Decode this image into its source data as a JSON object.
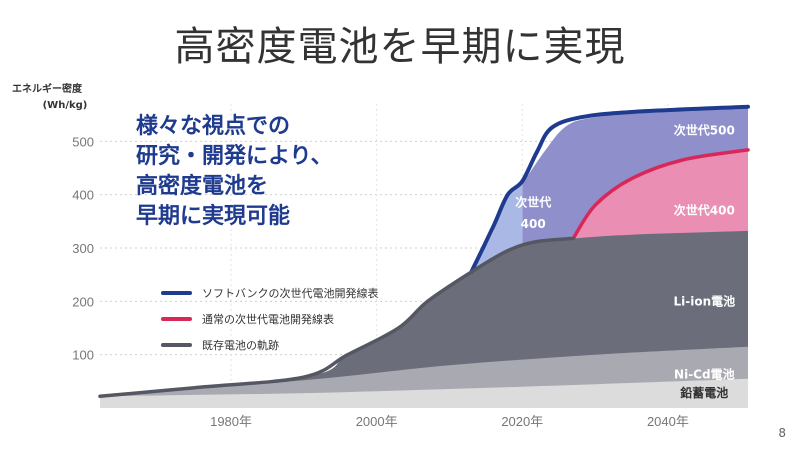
{
  "slide": {
    "title": "高密度電池を早期に実現",
    "page_number": "8"
  },
  "chart_data": {
    "type": "area",
    "ylabel": "エネルギー密度",
    "yunit": "(Wh/kg)",
    "yticks": [
      100,
      200,
      300,
      400,
      500
    ],
    "ylim": [
      0,
      570
    ],
    "xlim": [
      1962,
      2051
    ],
    "xticks": [
      {
        "value": 1980,
        "label": "1980年"
      },
      {
        "value": 2000,
        "label": "2000年"
      },
      {
        "value": 2020,
        "label": "2020年"
      },
      {
        "value": 2040,
        "label": "2040年"
      }
    ],
    "grid": "horizontal-dotted",
    "areas": [
      {
        "name": "鉛蓄電池",
        "color": "#dcdcdc",
        "label_color": "#333333",
        "points": [
          [
            1962,
            22
          ],
          [
            1990,
            28
          ],
          [
            2020,
            40
          ],
          [
            2051,
            55
          ]
        ]
      },
      {
        "name": "Ni-Cd電池",
        "color": "#a9a9b1",
        "label_color": "#ffffff",
        "points": [
          [
            1962,
            22
          ],
          [
            1990,
            52
          ],
          [
            2010,
            80
          ],
          [
            2030,
            100
          ],
          [
            2051,
            115
          ]
        ]
      },
      {
        "name": "Li-ion電池",
        "color": "#6b6e7a",
        "label_color": "#ffffff",
        "points": [
          [
            1962,
            22
          ],
          [
            1990,
            58
          ],
          [
            1996,
            100
          ],
          [
            2003,
            150
          ],
          [
            2007,
            200
          ],
          [
            2013,
            255
          ],
          [
            2018,
            295
          ],
          [
            2022,
            312
          ],
          [
            2027,
            318
          ],
          [
            2035,
            325
          ],
          [
            2051,
            332
          ]
        ]
      },
      {
        "name": "次世代400",
        "color": "#ea8fb3",
        "label_color": "#ffffff",
        "points": [
          [
            2027,
            318
          ],
          [
            2030,
            380
          ],
          [
            2035,
            430
          ],
          [
            2042,
            465
          ],
          [
            2051,
            484
          ]
        ]
      },
      {
        "name": "次世代500",
        "color": "#8f8fcc",
        "label_color": "#ffffff",
        "points": [
          [
            2020,
            420
          ],
          [
            2023,
            480
          ],
          [
            2026,
            528
          ],
          [
            2030,
            545
          ],
          [
            2040,
            560
          ],
          [
            2051,
            565
          ]
        ]
      },
      {
        "name": "次世代 400",
        "color": "#a9b8e4",
        "label_color": "#ffffff",
        "points": [
          [
            2013,
            255
          ],
          [
            2016,
            330
          ],
          [
            2018,
            400
          ],
          [
            2020,
            420
          ]
        ]
      }
    ],
    "lines": [
      {
        "name": "ソフトバンクの次世代電池開発線表",
        "color": "#1f3b8f",
        "width": 4,
        "points": [
          [
            2013,
            255
          ],
          [
            2016,
            340
          ],
          [
            2018,
            400
          ],
          [
            2020,
            425
          ],
          [
            2022,
            480
          ],
          [
            2024,
            525
          ],
          [
            2028,
            545
          ],
          [
            2035,
            555
          ],
          [
            2051,
            565
          ]
        ]
      },
      {
        "name": "通常の次世代電池開発線表",
        "color": "#d8285a",
        "width": 3.5,
        "points": [
          [
            2027,
            318
          ],
          [
            2030,
            380
          ],
          [
            2035,
            430
          ],
          [
            2042,
            465
          ],
          [
            2051,
            484
          ]
        ]
      },
      {
        "name": "既存電池の軌跡",
        "color": "#555862",
        "width": 3.5,
        "points": [
          [
            1962,
            22
          ],
          [
            1975,
            38
          ],
          [
            1990,
            58
          ],
          [
            1996,
            100
          ],
          [
            2003,
            150
          ],
          [
            2007,
            200
          ],
          [
            2013,
            255
          ],
          [
            2018,
            295
          ],
          [
            2022,
            312
          ],
          [
            2027,
            318
          ]
        ]
      }
    ],
    "area_labels": [
      {
        "text": "次世代500",
        "x": 2045,
        "y": 520
      },
      {
        "text": "次世代400",
        "x": 2045,
        "y": 370
      },
      {
        "text": "次世代",
        "x": 2021.5,
        "y": 385
      },
      {
        "text": "400",
        "x": 2021.5,
        "y": 345
      },
      {
        "text": "Li-ion電池",
        "x": 2045,
        "y": 200
      },
      {
        "text": "Ni-Cd電池",
        "x": 2045,
        "y": 63
      },
      {
        "text": "鉛蓄電池",
        "x": 2045,
        "y": 28
      }
    ],
    "legend": [
      {
        "label": "ソフトバンクの次世代電池開発線表",
        "color": "#1f3b8f"
      },
      {
        "label": "通常の次世代電池開発線表",
        "color": "#d8285a"
      },
      {
        "label": "既存電池の軌跡",
        "color": "#555862"
      }
    ],
    "annotation": {
      "lines": [
        "様々な視点での",
        "研究・開発により、",
        "高密度電池を",
        "早期に実現可能"
      ],
      "color": "#1f3b8f"
    }
  }
}
